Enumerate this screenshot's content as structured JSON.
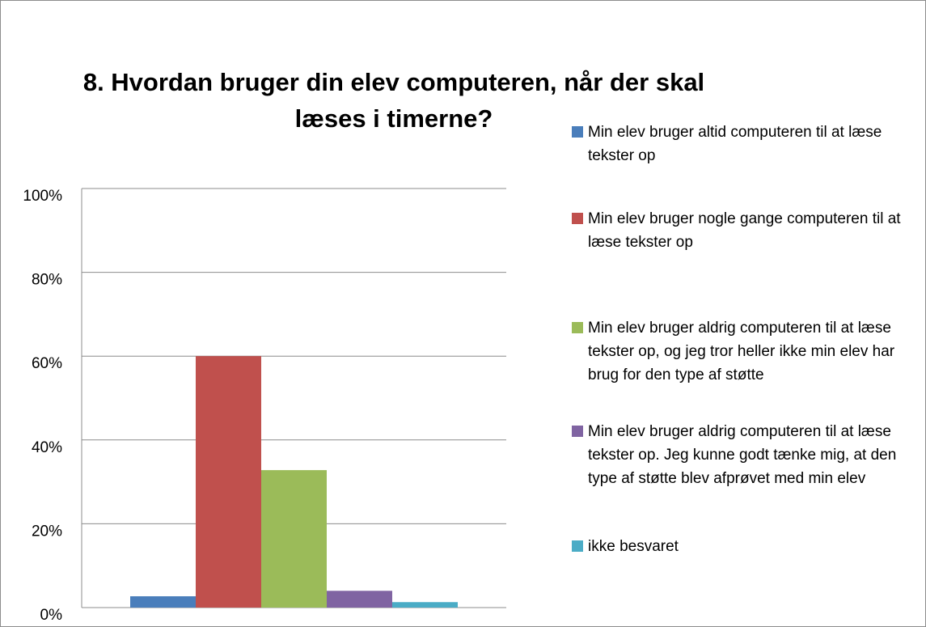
{
  "chart_data": {
    "type": "bar",
    "title": "8. Hvordan bruger din elev computeren, når der skal læses i timerne?",
    "categories": [
      null
    ],
    "series": [
      {
        "name": "Min elev bruger altid computeren til at læse tekster op",
        "color": "#4a7ebb",
        "values": [
          2.7
        ]
      },
      {
        "name": "Min elev bruger nogle gange computeren til at læse tekster op",
        "color": "#c0504d",
        "values": [
          60
        ]
      },
      {
        "name": "Min elev bruger aldrig computeren til at læse tekster op, og jeg tror heller ikke min elev har brug for den type af støtte",
        "color": "#9bbb59",
        "values": [
          32.8
        ]
      },
      {
        "name": "Min elev bruger aldrig computeren til at læse tekster op. Jeg kunne godt tænke mig, at den type af støtte blev afprøvet med min elev",
        "color": "#8064a2",
        "values": [
          4
        ]
      },
      {
        "name": "ikke besvaret",
        "color": "#4bacc6",
        "values": [
          1.3
        ]
      }
    ],
    "ylim": [
      0,
      100
    ],
    "yticks": [
      {
        "value": 0,
        "label": "0%"
      },
      {
        "value": 20,
        "label": "20%"
      },
      {
        "value": 40,
        "label": "40%"
      },
      {
        "value": 60,
        "label": "60%"
      },
      {
        "value": 80,
        "label": "80%"
      },
      {
        "value": 100,
        "label": "100%"
      }
    ],
    "grid": true,
    "legend": "right"
  }
}
